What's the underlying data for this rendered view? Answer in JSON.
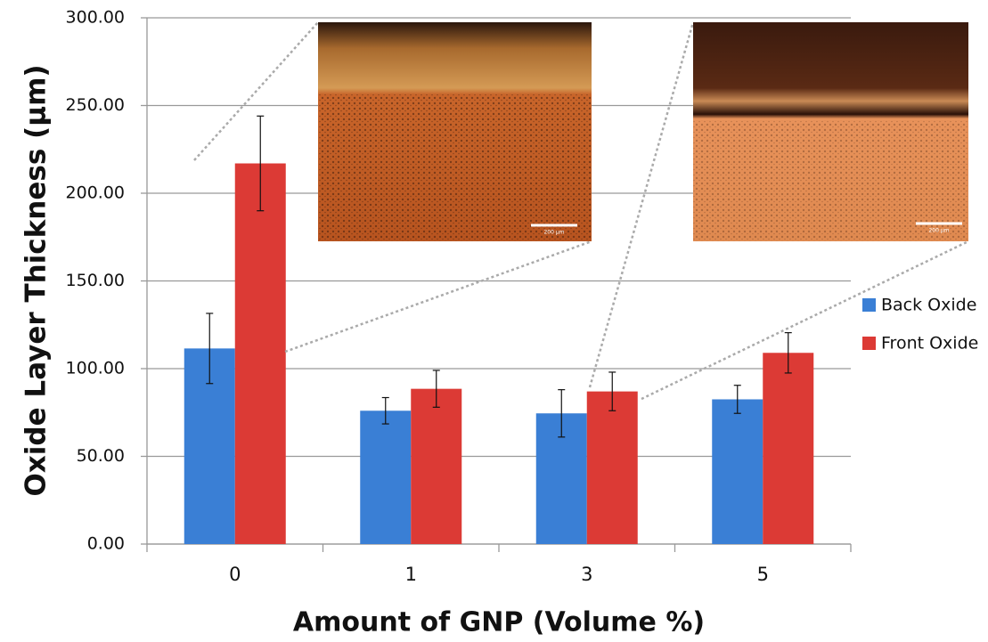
{
  "chart_data": {
    "type": "bar",
    "y_label": "Oxide Layer Thickness (µm)",
    "x_label": "Amount of GNP (Volume %)",
    "categories": [
      "0",
      "1",
      "3",
      "5"
    ],
    "series": [
      {
        "name": "Back Oxide",
        "color": "#3a7fd5",
        "values": [
          111.5,
          76,
          74.5,
          82.5
        ],
        "errors": [
          20,
          7.5,
          13.5,
          8
        ]
      },
      {
        "name": "Front Oxide",
        "color": "#dc3a35",
        "values": [
          217,
          88.5,
          87,
          109
        ],
        "errors": [
          27,
          10.5,
          11,
          11.5
        ]
      }
    ],
    "ylim": [
      0,
      300
    ],
    "yticks": [
      {
        "value": 0,
        "label": "0.00"
      },
      {
        "value": 50,
        "label": "50.00"
      },
      {
        "value": 100,
        "label": "100.00"
      },
      {
        "value": 150,
        "label": "150.00"
      },
      {
        "value": 200,
        "label": "200.00"
      },
      {
        "value": 250,
        "label": "250.00"
      },
      {
        "value": 300,
        "label": "300.00"
      }
    ],
    "grid": true,
    "legend": "right",
    "annotations": [
      "200 µm",
      "200 µm"
    ]
  }
}
